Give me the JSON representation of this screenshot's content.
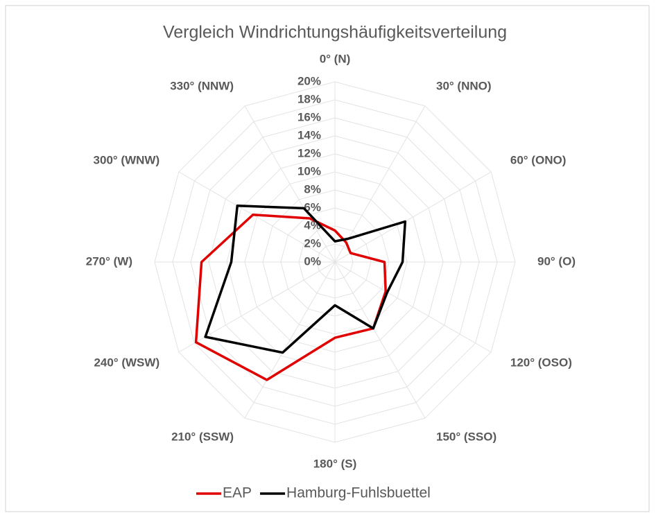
{
  "chart_data": {
    "type": "radar",
    "title": "Vergleich Windrichtungshäufigkeitsverteilung",
    "categories": [
      "0° (N)",
      "30° (NNO)",
      "60° (ONO)",
      "90° (O)",
      "120° (OSO)",
      "150° (SSO)",
      "180° (S)",
      "210° (SSW)",
      "240° (WSW)",
      "270° (W)",
      "300° (WNW)",
      "330° (NNW)"
    ],
    "series": [
      {
        "name": "EAP",
        "color": "#e00000",
        "values": [
          3.5,
          2.5,
          2.0,
          5.5,
          6.5,
          8.5,
          8.4,
          15.1,
          17.8,
          14.8,
          10.5,
          5.6
        ]
      },
      {
        "name": "Hamburg-Fuhlsbuettel",
        "color": "#000000",
        "values": [
          2.3,
          3.0,
          9.0,
          7.5,
          6.7,
          8.5,
          4.8,
          11.6,
          16.6,
          11.5,
          12.5,
          6.9
        ]
      }
    ],
    "ylim": [
      0,
      20
    ],
    "yticks": [
      {
        "value": 0,
        "label": "0%"
      },
      {
        "value": 2,
        "label": "2%"
      },
      {
        "value": 4,
        "label": "4%"
      },
      {
        "value": 6,
        "label": "6%"
      },
      {
        "value": 8,
        "label": "8%"
      },
      {
        "value": 10,
        "label": "10%"
      },
      {
        "value": 12,
        "label": "12%"
      },
      {
        "value": 14,
        "label": "14%"
      },
      {
        "value": 16,
        "label": "16%"
      },
      {
        "value": 18,
        "label": "18%"
      },
      {
        "value": 20,
        "label": "20%"
      }
    ],
    "grid": true,
    "legend": "bottom"
  }
}
